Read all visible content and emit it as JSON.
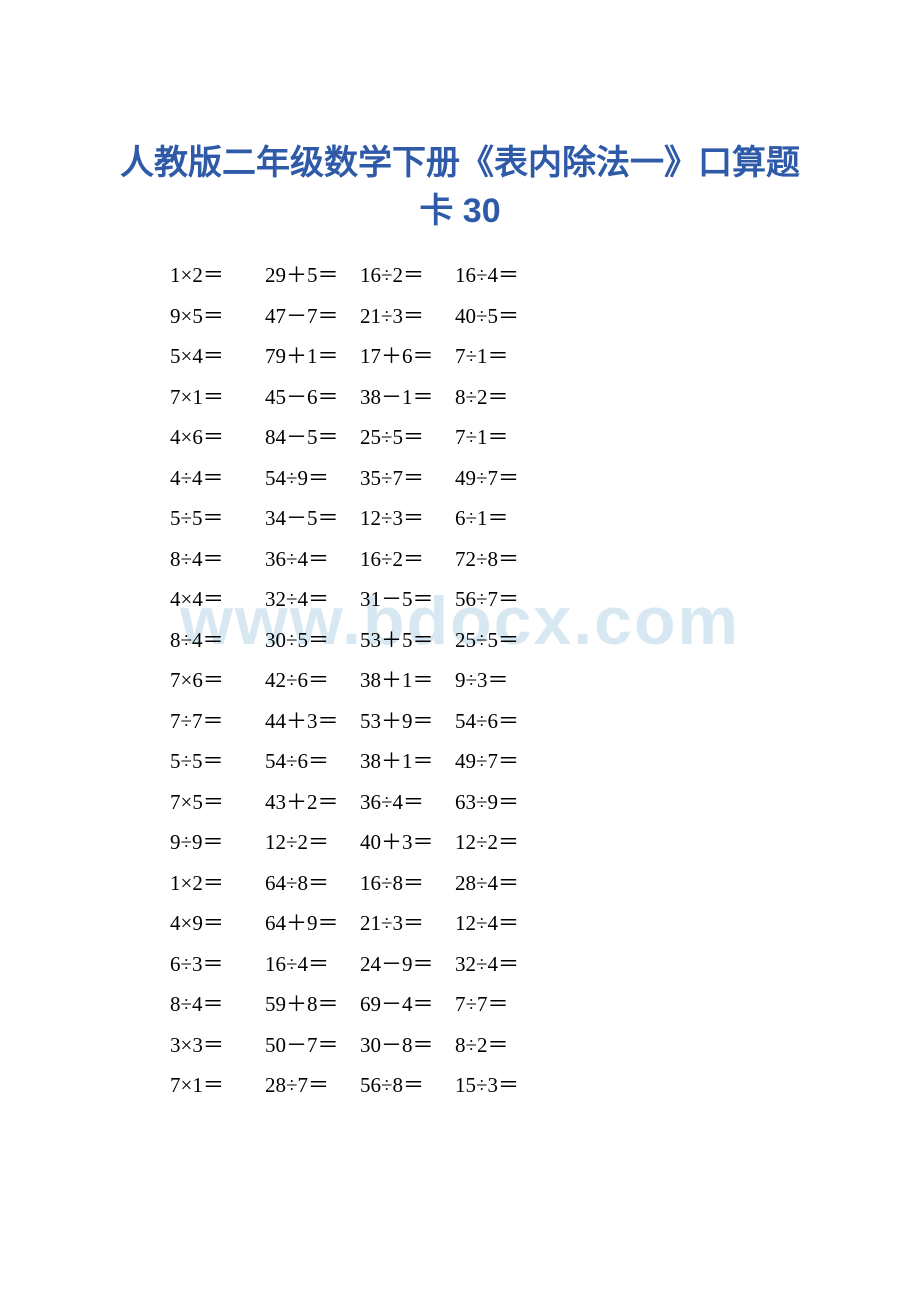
{
  "title": {
    "line1": "人教版二年级数学下册《表内除法一》口算题",
    "line2": "卡 30",
    "color": "#2e5aa8",
    "font_size": 34
  },
  "watermark": {
    "text": "www.bdocx.com",
    "color": "#d8e8f2",
    "font_size": 68
  },
  "problems": {
    "font_size": 21,
    "text_color": "#000000",
    "rows": [
      [
        "1×2＝",
        "29＋5＝",
        "16÷2＝",
        "16÷4＝"
      ],
      [
        "9×5＝",
        "47－7＝",
        "21÷3＝",
        "40÷5＝"
      ],
      [
        "5×4＝",
        "79＋1＝",
        "17＋6＝",
        "7÷1＝"
      ],
      [
        "7×1＝",
        "45－6＝",
        "38－1＝",
        "8÷2＝"
      ],
      [
        "4×6＝",
        "84－5＝",
        "25÷5＝",
        "7÷1＝"
      ],
      [
        "4÷4＝",
        "54÷9＝",
        "35÷7＝",
        "49÷7＝"
      ],
      [
        "5÷5＝",
        "34－5＝",
        "12÷3＝",
        "6÷1＝"
      ],
      [
        "8÷4＝",
        "36÷4＝",
        "16÷2＝",
        "72÷8＝"
      ],
      [
        "4×4＝",
        "32÷4＝",
        "31－5＝",
        "56÷7＝"
      ],
      [
        "8÷4＝",
        "30÷5＝",
        "53＋5＝",
        "25÷5＝"
      ],
      [
        "7×6＝",
        "42÷6＝",
        "38＋1＝",
        "9÷3＝"
      ],
      [
        "7÷7＝",
        "44＋3＝",
        "53＋9＝",
        "54÷6＝"
      ],
      [
        "5÷5＝",
        "54÷6＝",
        "38＋1＝",
        "49÷7＝"
      ],
      [
        "7×5＝",
        "43＋2＝",
        "36÷4＝",
        "63÷9＝"
      ],
      [
        "9÷9＝",
        "12÷2＝",
        "40＋3＝",
        "12÷2＝"
      ],
      [
        "1×2＝",
        "64÷8＝",
        "16÷8＝",
        "28÷4＝"
      ],
      [
        "4×9＝",
        "64＋9＝",
        "21÷3＝",
        "12÷4＝"
      ],
      [
        "6÷3＝",
        "16÷4＝",
        "24－9＝",
        "32÷4＝"
      ],
      [
        "8÷4＝",
        "59＋8＝",
        "69－4＝",
        "7÷7＝"
      ],
      [
        "3×3＝",
        "50－7＝",
        "30－8＝",
        "8÷2＝"
      ],
      [
        "7×1＝",
        "28÷7＝",
        "56÷8＝",
        "15÷3＝"
      ]
    ]
  },
  "background_color": "#ffffff"
}
